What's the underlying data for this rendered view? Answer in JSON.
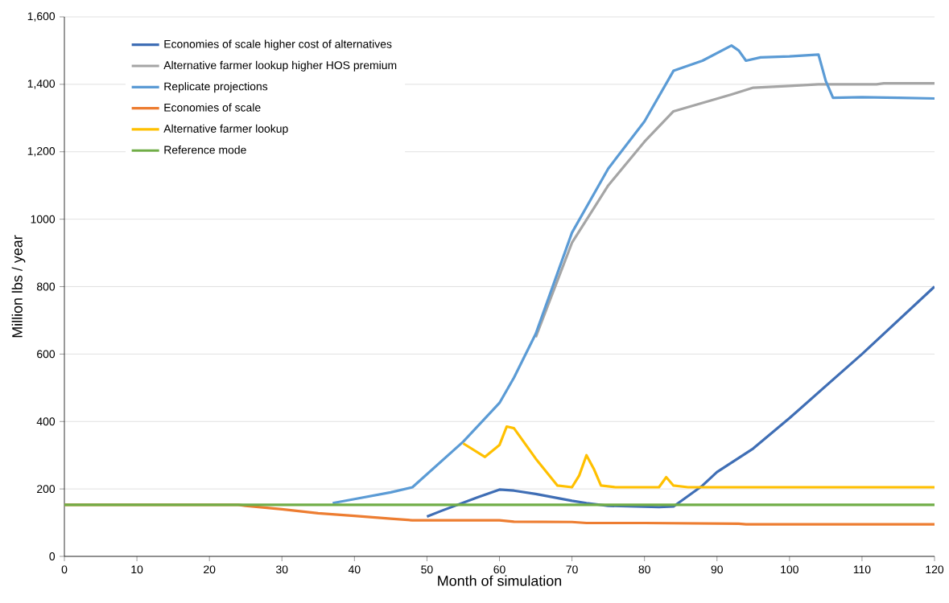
{
  "chart_data": {
    "type": "line",
    "xlabel": "Month of simulation",
    "ylabel": "Million lbs / year",
    "xlim": [
      0,
      120
    ],
    "xticks": [
      0,
      10,
      20,
      30,
      40,
      50,
      60,
      70,
      80,
      90,
      100,
      110,
      120
    ],
    "ylim": [
      0,
      1600
    ],
    "yticks": [
      0,
      200,
      400,
      600,
      800,
      {
        "value": 1000,
        "label": "1000"
      },
      {
        "value": 1200,
        "label": "1,200"
      },
      {
        "value": 1400,
        "label": "1,400"
      },
      {
        "value": 1600,
        "label": "1,600"
      }
    ],
    "grid": "y",
    "legend": "top left",
    "marker": "none",
    "line_style": "solid",
    "series": [
      {
        "name": "Economies of scale higher cost of alternatives",
        "color": "#3f6eb5",
        "x": [
          50,
          52,
          57,
          60,
          62,
          65,
          70,
          72,
          75,
          82,
          84,
          88,
          90,
          95,
          100,
          110,
          120
        ],
        "values": [
          118,
          135,
          175,
          198,
          195,
          185,
          165,
          158,
          150,
          146,
          148,
          210,
          250,
          320,
          410,
          600,
          800
        ]
      },
      {
        "name": "Alternative farmer lookup higher HOS premium",
        "color": "#a5a5a5",
        "x": [
          65,
          70,
          75,
          80,
          84,
          88,
          92,
          95,
          100,
          104,
          112,
          113,
          120
        ],
        "values": [
          650,
          930,
          1100,
          1230,
          1320,
          1345,
          1370,
          1390,
          1395,
          1400,
          1400,
          1403,
          1403
        ]
      },
      {
        "name": "Replicate projections",
        "color": "#5b9bd5",
        "x": [
          37,
          40,
          45,
          48,
          55,
          60,
          62,
          65,
          70,
          75,
          80,
          84,
          88,
          92,
          93,
          94,
          96,
          100,
          104,
          105,
          106,
          110,
          115,
          120
        ],
        "values": [
          158,
          170,
          190,
          205,
          340,
          455,
          530,
          660,
          960,
          1150,
          1290,
          1440,
          1470,
          1515,
          1500,
          1470,
          1480,
          1483,
          1488,
          1410,
          1360,
          1362,
          1360,
          1358
        ]
      },
      {
        "name": "Economies of scale",
        "color": "#ed7d31",
        "x": [
          0,
          24,
          25,
          30,
          35,
          40,
          45,
          48,
          60,
          62,
          70,
          72,
          80,
          93,
          94,
          120
        ],
        "values": [
          153,
          153,
          150,
          140,
          128,
          120,
          112,
          107,
          107,
          103,
          102,
          99,
          99,
          97,
          95,
          95
        ]
      },
      {
        "name": "Alternative farmer lookup",
        "color": "#ffc000",
        "x": [
          55,
          58,
          60,
          61,
          62,
          65,
          68,
          70,
          71,
          72,
          73,
          74,
          76,
          82,
          83,
          84,
          86,
          120
        ],
        "values": [
          335,
          295,
          330,
          385,
          380,
          290,
          210,
          205,
          240,
          300,
          260,
          210,
          205,
          205,
          235,
          210,
          205,
          205
        ]
      },
      {
        "name": "Reference mode",
        "color": "#70ad47",
        "x": [
          0,
          120
        ],
        "values": [
          153,
          153
        ]
      }
    ]
  }
}
